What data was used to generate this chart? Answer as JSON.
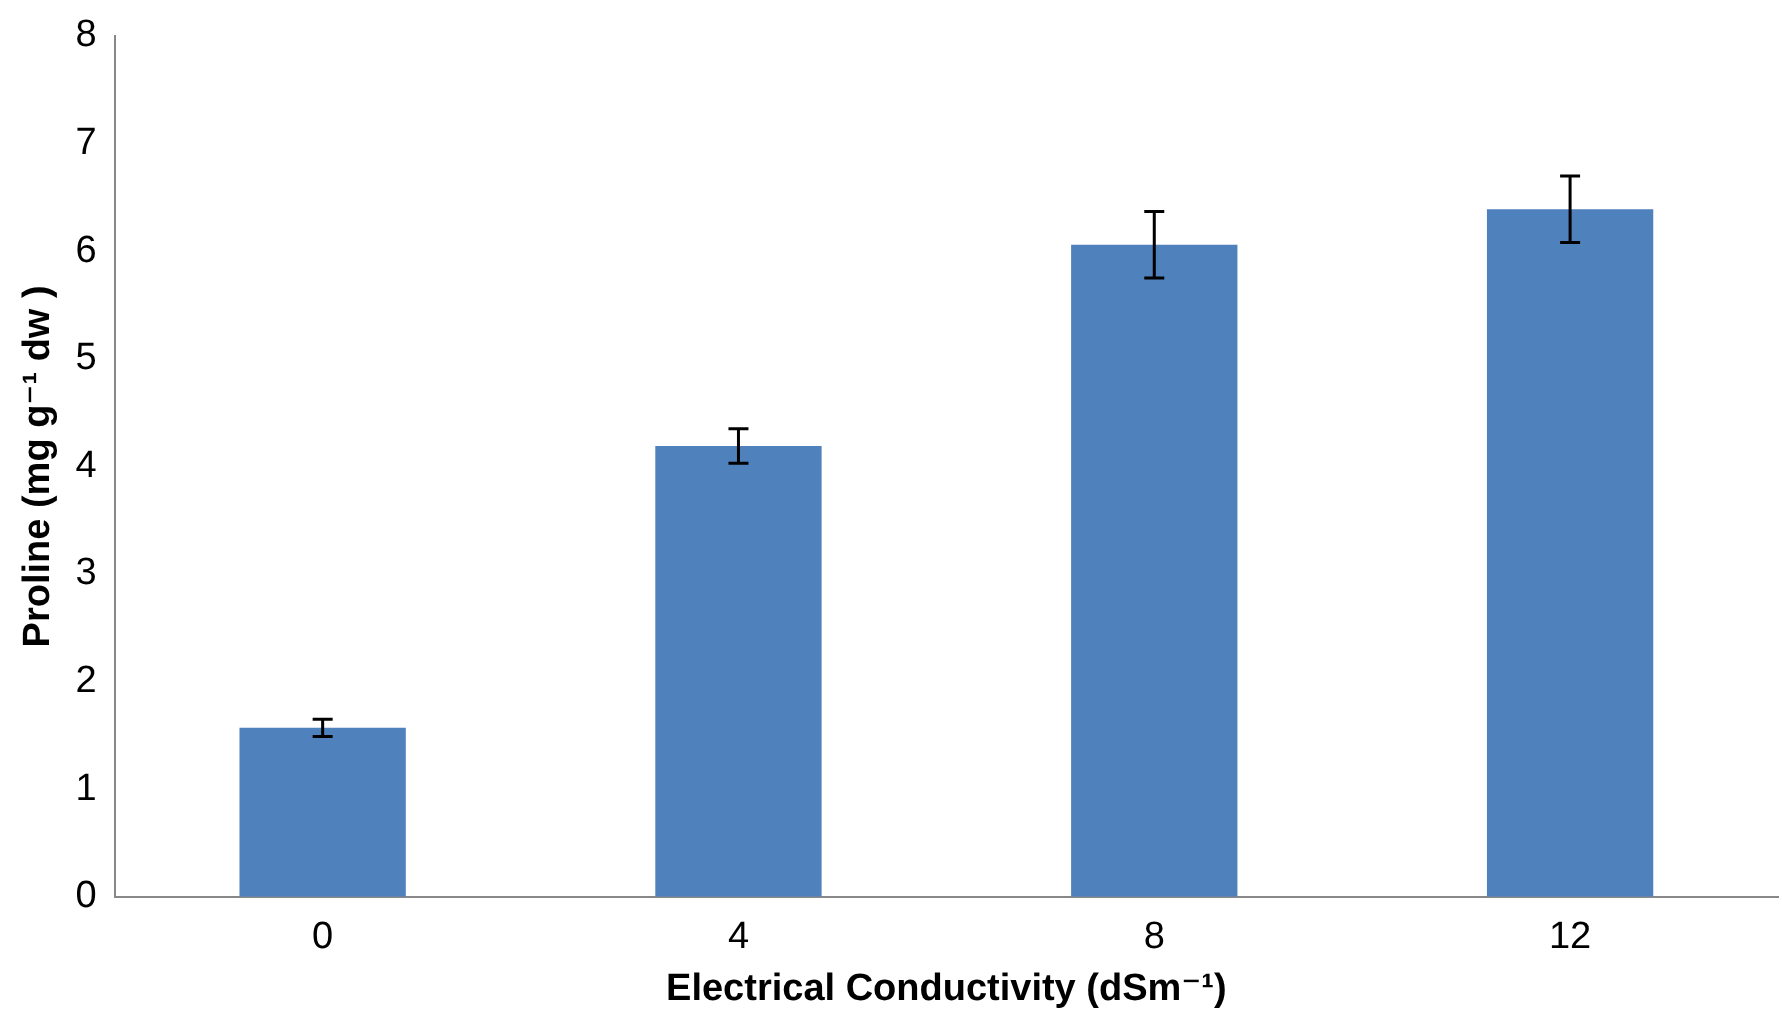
{
  "chart_data": {
    "type": "bar",
    "xlabel": "Electrical Conductivity (dSm⁻¹)",
    "ylabel": "Proline (mg g⁻¹ dw )",
    "categories": [
      "0",
      "4",
      "8",
      "12"
    ],
    "values": [
      1.57,
      4.19,
      6.06,
      6.39
    ],
    "errors": [
      0.08,
      0.16,
      0.31,
      0.31
    ],
    "color": "#4f81bd",
    "ylim": [
      0,
      8
    ],
    "yticks": [
      0,
      1,
      2,
      3,
      4,
      5,
      6,
      7,
      8
    ],
    "grid": false,
    "legend": false
  }
}
